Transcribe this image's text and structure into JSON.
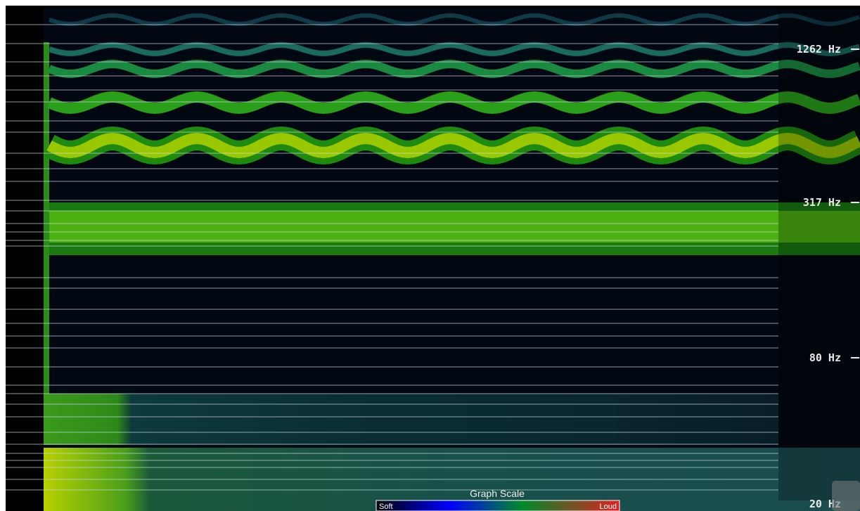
{
  "axis_labels": [
    "1262 Hz",
    "317 Hz",
    "80 Hz",
    "20 Hz"
  ],
  "scale": {
    "title": "Graph Scale",
    "low": "Soft",
    "high": "Loud"
  }
}
